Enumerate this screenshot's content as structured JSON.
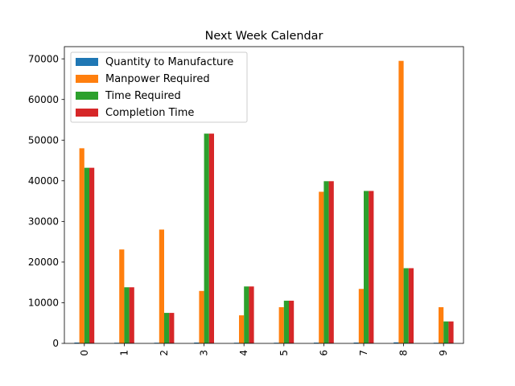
{
  "chart_data": {
    "type": "bar",
    "title": "Next Week Calendar",
    "xlabel": "",
    "ylabel": "",
    "categories": [
      "0",
      "1",
      "2",
      "3",
      "4",
      "5",
      "6",
      "7",
      "8",
      "9"
    ],
    "ylim": [
      0,
      73000
    ],
    "yticks": [
      0,
      10000,
      20000,
      30000,
      40000,
      50000,
      60000,
      70000
    ],
    "grid": false,
    "legend_position": "top-left",
    "series": [
      {
        "name": "Quantity to Manufacture",
        "color": "#1f77b4",
        "values": [
          200,
          150,
          150,
          200,
          150,
          150,
          180,
          200,
          250,
          150
        ]
      },
      {
        "name": "Manpower Required",
        "color": "#ff7f0e",
        "values": [
          48000,
          23100,
          28000,
          12900,
          6900,
          8900,
          37300,
          13400,
          69500,
          8900
        ]
      },
      {
        "name": "Time Required",
        "color": "#2ca02c",
        "values": [
          43200,
          13800,
          7500,
          51600,
          14000,
          10500,
          39900,
          37500,
          18500,
          5400
        ]
      },
      {
        "name": "Completion Time",
        "color": "#d62728",
        "values": [
          43200,
          13800,
          7500,
          51600,
          14000,
          10500,
          39900,
          37500,
          18500,
          5400
        ]
      }
    ]
  }
}
